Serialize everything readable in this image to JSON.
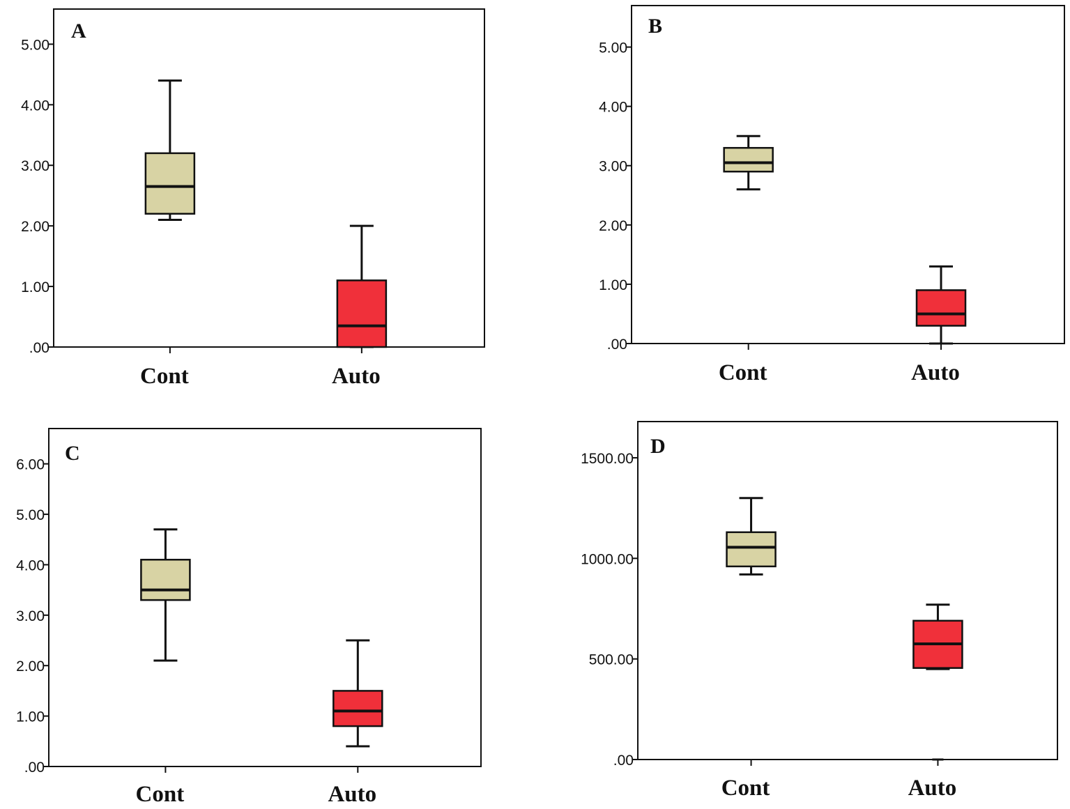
{
  "chart_data": [
    {
      "panel": "A",
      "type": "box",
      "categories": [
        "Cont",
        "Auto"
      ],
      "yticks": [
        ".00",
        "1.00",
        "2.00",
        "3.00",
        "4.00",
        "5.00"
      ],
      "ylim": [
        0,
        5.58
      ],
      "boxes": [
        {
          "category": "Cont",
          "min": 2.1,
          "q1": 2.2,
          "median": 2.65,
          "q3": 3.2,
          "max": 4.4,
          "color": "#d8d3a4"
        },
        {
          "category": "Auto",
          "min": 0.0,
          "q1": 0.0,
          "median": 0.35,
          "q3": 1.1,
          "max": 2.0,
          "color": "#f0303a"
        }
      ],
      "grid": false
    },
    {
      "panel": "B",
      "type": "box",
      "categories": [
        "Cont",
        "Auto"
      ],
      "yticks": [
        ".00",
        "1.00",
        "2.00",
        "3.00",
        "4.00",
        "5.00"
      ],
      "ylim": [
        0,
        5.7
      ],
      "boxes": [
        {
          "category": "Cont",
          "min": 2.6,
          "q1": 2.9,
          "median": 3.05,
          "q3": 3.3,
          "max": 3.5,
          "color": "#d8d3a4"
        },
        {
          "category": "Auto",
          "min": 0.0,
          "q1": 0.3,
          "median": 0.5,
          "q3": 0.9,
          "max": 1.3,
          "color": "#f0303a"
        }
      ],
      "grid": false
    },
    {
      "panel": "C",
      "type": "box",
      "categories": [
        "Cont",
        "Auto"
      ],
      "yticks": [
        ".00",
        "1.00",
        "2.00",
        "3.00",
        "4.00",
        "5.00",
        "6.00"
      ],
      "ylim": [
        0,
        6.7
      ],
      "boxes": [
        {
          "category": "Cont",
          "min": 2.1,
          "q1": 3.3,
          "median": 3.5,
          "q3": 4.1,
          "max": 4.7,
          "color": "#d8d3a4"
        },
        {
          "category": "Auto",
          "min": 0.4,
          "q1": 0.8,
          "median": 1.1,
          "q3": 1.5,
          "max": 2.5,
          "color": "#f0303a"
        }
      ],
      "grid": false
    },
    {
      "panel": "D",
      "type": "box",
      "categories": [
        "Cont",
        "Auto"
      ],
      "yticks": [
        ".00",
        "500.00",
        "1000.00",
        "1500.00"
      ],
      "ylim": [
        0,
        1680
      ],
      "boxes": [
        {
          "category": "Cont",
          "min": 920,
          "q1": 960,
          "median": 1055,
          "q3": 1130,
          "max": 1300,
          "color": "#d8d3a4"
        },
        {
          "category": "Auto",
          "min": 450,
          "q1": 455,
          "median": 575,
          "q3": 690,
          "max": 770,
          "outlier": 0,
          "color": "#f0303a"
        }
      ],
      "grid": false
    }
  ]
}
